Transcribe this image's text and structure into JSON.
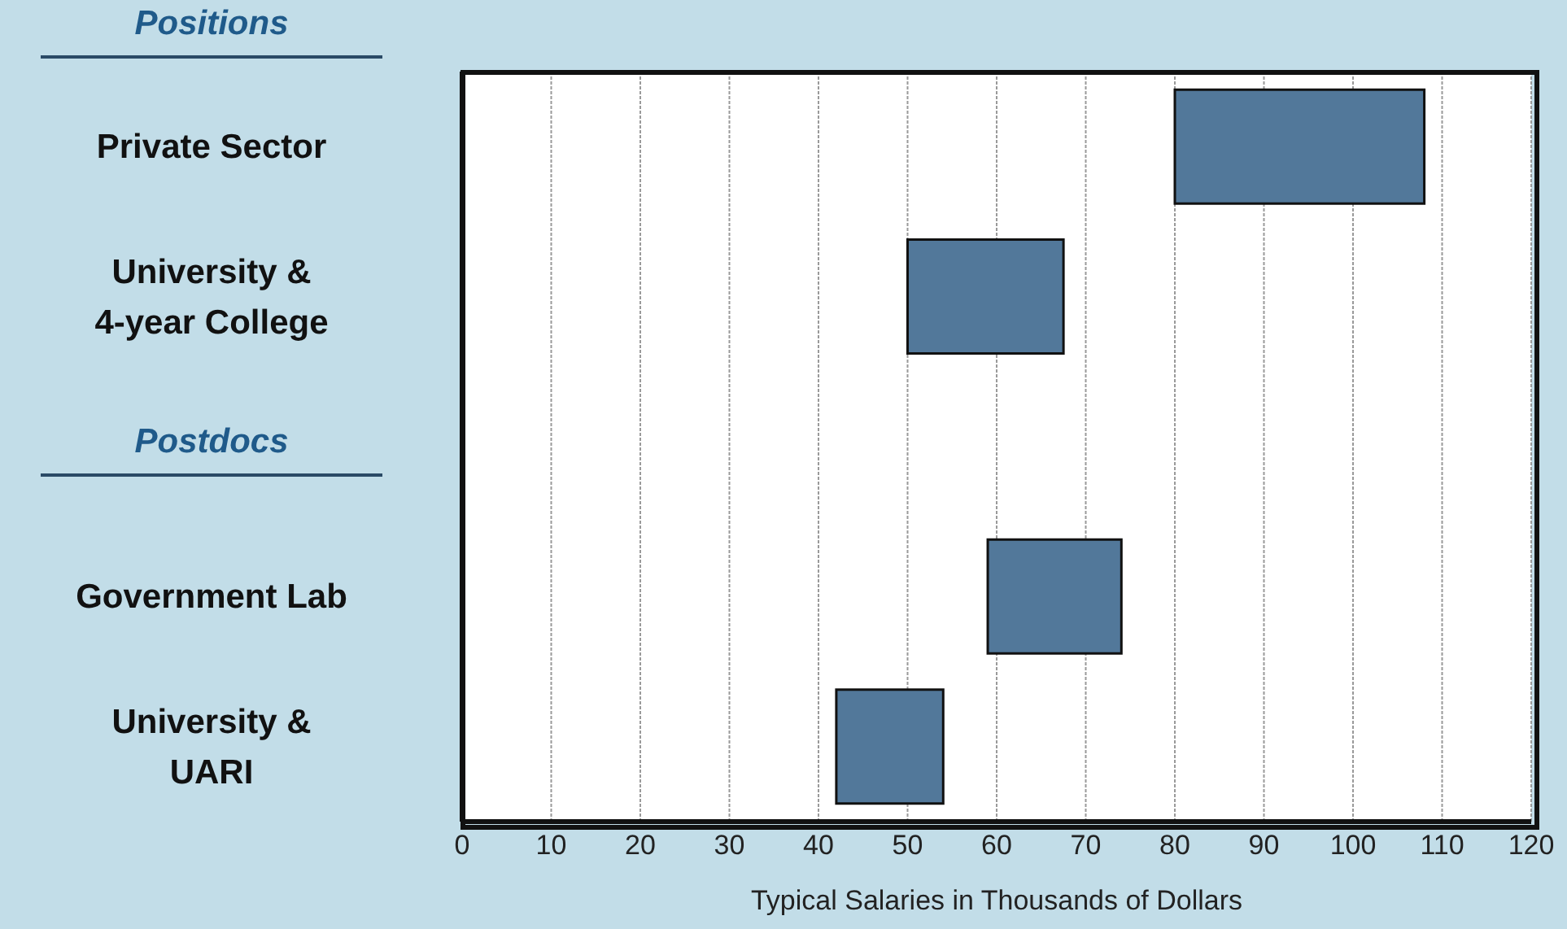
{
  "chart_data": {
    "type": "bar",
    "orientation": "horizontal",
    "xlabel": "Typical Salaries in Thousands of Dollars",
    "annotations": [
      "Positions",
      "Postdocs"
    ],
    "categories": [
      "Private Sector",
      "University & 4-year College",
      null,
      "Government Lab",
      "University & UARI"
    ],
    "base": [
      80,
      50,
      null,
      59,
      42
    ],
    "values": [
      28,
      17.5,
      null,
      15,
      12
    ],
    "color": "#52789a",
    "xlim": [
      0,
      120
    ],
    "xticks": [
      0,
      10,
      20,
      30,
      40,
      50,
      60,
      70,
      80,
      90,
      100,
      110,
      120
    ],
    "grid": "x"
  }
}
